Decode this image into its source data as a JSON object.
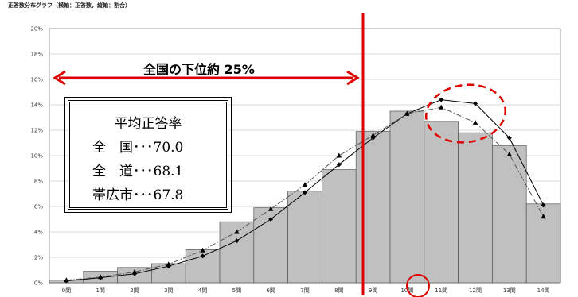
{
  "header": {
    "title": "正答数分布グラフ（横軸：正答数，縦軸：割合）"
  },
  "colors": {
    "bar_fill": "#c0c0c0",
    "bar_stroke": "#555555",
    "series_solid": "#000000",
    "series_dashdot": "#555555",
    "annotation_red": "#e00000",
    "grid": "#cfcfcf"
  },
  "chart_data": {
    "type": "bar",
    "title": "正答数分布グラフ（横軸：正答数，縦軸：割合）",
    "categories": [
      "0問",
      "1問",
      "2問",
      "3問",
      "4問",
      "5問",
      "6問",
      "7問",
      "8問",
      "9問",
      "10問",
      "11問",
      "12問",
      "13問",
      "14問"
    ],
    "ylim": [
      0,
      20
    ],
    "yticks": [
      "0%",
      "2%",
      "4%",
      "6%",
      "8%",
      "10%",
      "12%",
      "14%",
      "16%",
      "18%",
      "20%"
    ],
    "grid": true,
    "bars": [
      0.2,
      0.9,
      1.2,
      1.5,
      2.6,
      4.8,
      5.9,
      7.2,
      8.9,
      11.9,
      13.5,
      12.7,
      11.8,
      10.8,
      6.2
    ],
    "series": [
      {
        "line_style": "solid",
        "marker": "diamond",
        "values": [
          0.15,
          0.4,
          0.7,
          1.3,
          2.1,
          3.3,
          5.0,
          7.1,
          9.3,
          11.4,
          13.3,
          14.4,
          14.1,
          11.4,
          6.1
        ]
      },
      {
        "line_style": "dash-dot",
        "marker": "triangle",
        "values": [
          0.2,
          0.45,
          0.85,
          1.45,
          2.55,
          4.0,
          5.8,
          7.7,
          10.0,
          11.6,
          13.3,
          13.8,
          12.6,
          10.1,
          5.2
        ]
      }
    ],
    "annotations": {
      "arrow_label": "全国の下位約 25%",
      "stats_title": "平均正答率",
      "stats": [
        {
          "label": "全　国",
          "value": "･･･70.0"
        },
        {
          "label": "全　道",
          "value": "･･･68.1"
        },
        {
          "label": "帯広市",
          "value": "･･･67.8"
        }
      ]
    }
  }
}
